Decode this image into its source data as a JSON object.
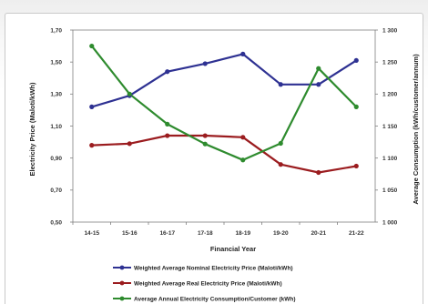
{
  "chart_data": {
    "type": "line",
    "title": "",
    "xlabel": "Financial Year",
    "ylabel": "Electricity Price (Maloti/kWh)",
    "y2label": "Average Consumption (kWh/customer/annum)",
    "categories": [
      "14-15",
      "15-16",
      "16-17",
      "17-18",
      "18-19",
      "19-20",
      "20-21",
      "21-22"
    ],
    "ylim": [
      0.5,
      1.7
    ],
    "yticks": [
      0.5,
      0.7,
      0.9,
      1.1,
      1.3,
      1.5,
      1.7
    ],
    "ytick_labels": [
      "0,50",
      "0,70",
      "0,90",
      "1,10",
      "1,30",
      "1,50",
      "1,70"
    ],
    "y2lim": [
      1000,
      1300
    ],
    "y2ticks": [
      1000,
      1050,
      1100,
      1150,
      1200,
      1250,
      1300
    ],
    "y2tick_labels": [
      "1 000",
      "1 050",
      "1 100",
      "1 150",
      "1 200",
      "1 250",
      "1 300"
    ],
    "grid": false,
    "legend_position": "bottom",
    "series": [
      {
        "name": "Weighted Average Nominal Electricity Price (Maloti/kWh)",
        "axis": "left",
        "color": "#2e3192",
        "values": [
          1.22,
          1.29,
          1.44,
          1.49,
          1.55,
          1.36,
          1.36,
          1.51
        ]
      },
      {
        "name": "Weighted Average Real Electricity Price (Maloti/kWh)",
        "axis": "left",
        "color": "#9b1c1f",
        "values": [
          0.98,
          0.99,
          1.04,
          1.04,
          1.03,
          0.86,
          0.81,
          0.85
        ]
      },
      {
        "name": "Average Annual Electricity Consumption/Customer (kWh)",
        "axis": "right",
        "color": "#2e8b2e",
        "values": [
          1275,
          1200,
          1153,
          1122,
          1097,
          1123,
          1240,
          1180
        ]
      }
    ]
  }
}
